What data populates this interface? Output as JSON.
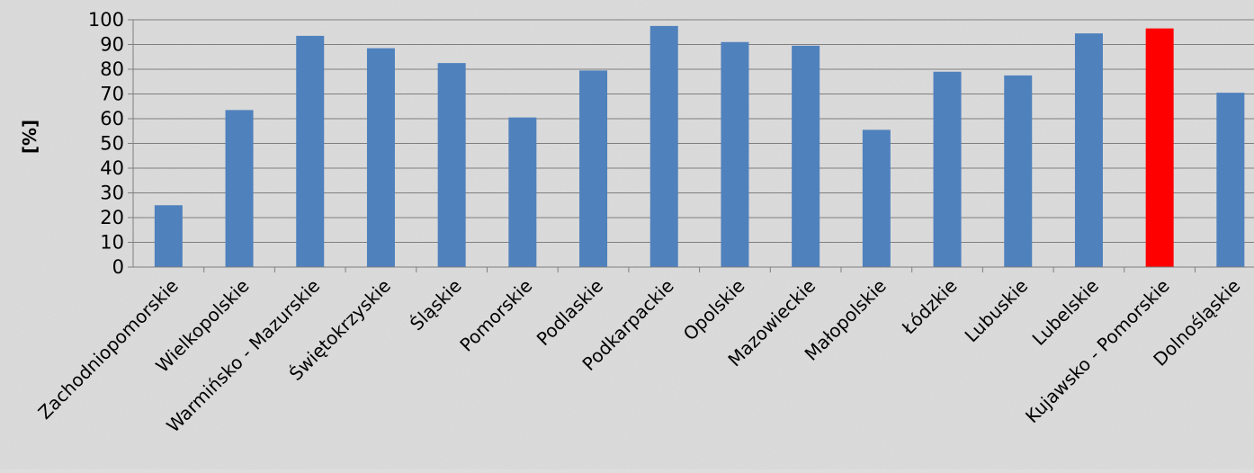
{
  "chart_data": {
    "type": "bar",
    "title": "",
    "xlabel": "",
    "ylabel": "[%]",
    "ylim": [
      0,
      100
    ],
    "yticks": [
      "0",
      "10",
      "20",
      "30",
      "40",
      "50",
      "60",
      "70",
      "80",
      "90",
      "100"
    ],
    "grid": true,
    "legend": "none",
    "categories": [
      "Zachodniopomorskie",
      "Wielkopolskie",
      "Warmińsko - Mazurskie",
      "Świętokrzyskie",
      "Śląskie",
      "Pomorskie",
      "Podlaskie",
      "Podkarpackie",
      "Opolskie",
      "Mazowieckie",
      "Małopolskie",
      "Łódzkie",
      "Lubuskie",
      "Lubelskie",
      "Kujawsko - Pomorskie",
      "Dolnośląskie"
    ],
    "values": [
      25,
      63.5,
      93.5,
      88.5,
      82.5,
      60.5,
      79.5,
      97.5,
      91,
      89.5,
      55.5,
      79,
      77.5,
      94.5,
      96.5,
      70.5
    ],
    "highlight_index": 14,
    "colors": {
      "bar": "#4f81bd",
      "highlight": "#ff0000",
      "grid": "#7f7f7f",
      "axis": "#7f7f7f",
      "background": "#dedede"
    }
  }
}
